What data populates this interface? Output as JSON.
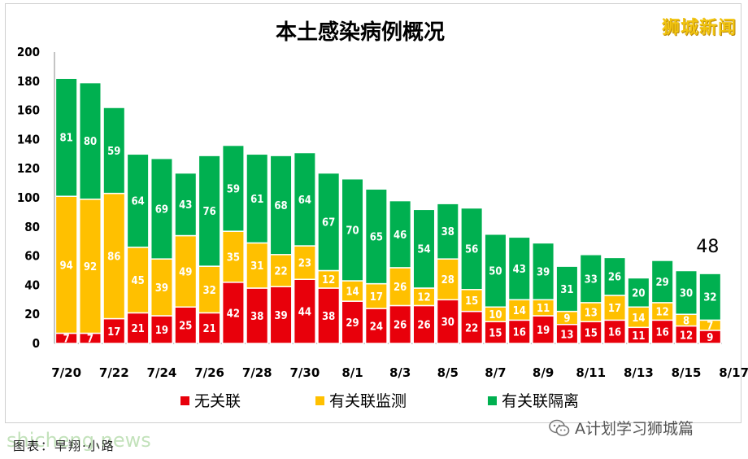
{
  "brand": "狮城新闻",
  "wechat_label": "A计划学习狮城篇",
  "watermark": "shicheng.news",
  "caption": "图表：早翔·小路",
  "colors": {
    "unlinked": "#e8000b",
    "monitored": "#ffc000",
    "quarantined": "#00b050"
  },
  "chart_data": {
    "type": "bar",
    "stacked": true,
    "title": "本土感染病例概况",
    "categories": [
      "7/20",
      "7/21",
      "7/22",
      "7/23",
      "7/24",
      "7/25",
      "7/26",
      "7/27",
      "7/28",
      "7/29",
      "7/30",
      "7/31",
      "8/1",
      "8/2",
      "8/3",
      "8/4",
      "8/5",
      "8/6",
      "8/7",
      "8/8",
      "8/9",
      "8/10",
      "8/11",
      "8/12",
      "8/13",
      "8/14",
      "8/15",
      "8/16"
    ],
    "x_tick_labels": [
      "7/20",
      "7/22",
      "7/24",
      "7/26",
      "7/28",
      "7/30",
      "8/1",
      "8/3",
      "8/5",
      "8/7",
      "8/9",
      "8/11",
      "8/13",
      "8/15",
      "8/17"
    ],
    "ylim": [
      0,
      200
    ],
    "yticks": [
      0,
      20,
      40,
      60,
      80,
      100,
      120,
      140,
      160,
      180,
      200
    ],
    "grid": false,
    "legend_position": "bottom",
    "series": [
      {
        "name": "无关联",
        "values": [
          7,
          7,
          17,
          21,
          19,
          25,
          21,
          42,
          38,
          39,
          44,
          38,
          29,
          24,
          26,
          26,
          30,
          22,
          15,
          16,
          19,
          13,
          15,
          16,
          11,
          16,
          12,
          9
        ]
      },
      {
        "name": "有关联监测",
        "values": [
          94,
          92,
          86,
          45,
          39,
          49,
          32,
          35,
          31,
          22,
          23,
          12,
          14,
          17,
          26,
          12,
          28,
          15,
          10,
          14,
          11,
          9,
          13,
          17,
          14,
          12,
          8,
          7
        ]
      },
      {
        "name": "有关联隔离",
        "values": [
          81,
          80,
          59,
          64,
          69,
          43,
          76,
          59,
          61,
          68,
          64,
          67,
          70,
          65,
          46,
          54,
          38,
          56,
          50,
          43,
          39,
          31,
          33,
          26,
          20,
          29,
          30,
          32
        ]
      }
    ],
    "annotations": [
      {
        "category": "8/16",
        "text": "48"
      }
    ]
  }
}
